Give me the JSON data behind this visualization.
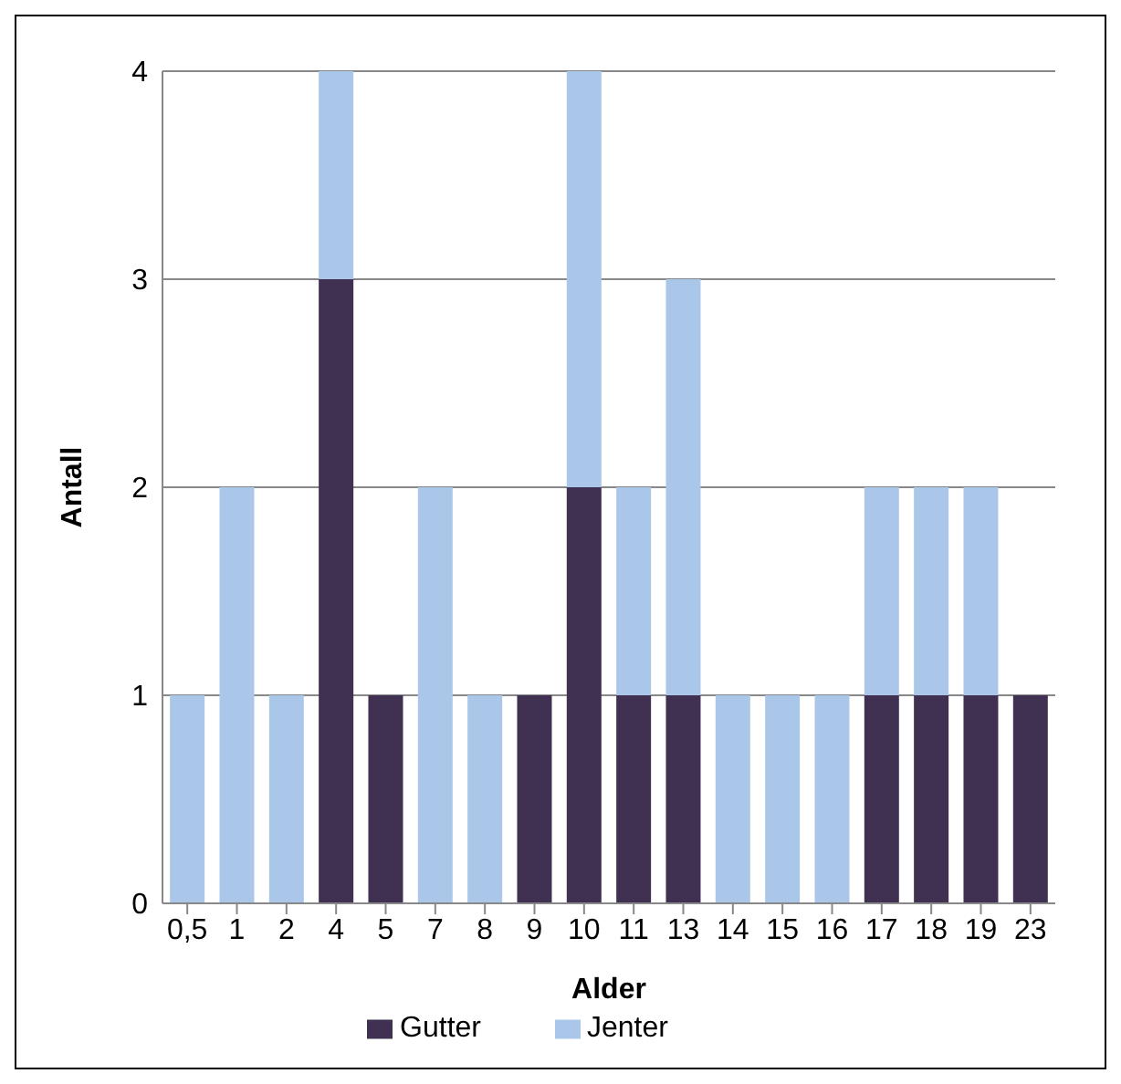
{
  "chart_data": {
    "type": "bar",
    "stacked": true,
    "xlabel": "Alder",
    "ylabel": "Antall",
    "categories": [
      "0,5",
      "1",
      "2",
      "4",
      "5",
      "7",
      "8",
      "9",
      "10",
      "11",
      "13",
      "14",
      "15",
      "16",
      "17",
      "18",
      "19",
      "23"
    ],
    "series": [
      {
        "name": "Gutter",
        "color": "#403152",
        "values": [
          0,
          0,
          0,
          3,
          1,
          0,
          0,
          1,
          2,
          1,
          1,
          0,
          0,
          0,
          1,
          1,
          1,
          1
        ]
      },
      {
        "name": "Jenter",
        "color": "#aac7e9",
        "values": [
          1,
          2,
          1,
          1,
          0,
          2,
          1,
          0,
          2,
          1,
          2,
          1,
          1,
          1,
          1,
          1,
          1,
          0
        ]
      }
    ],
    "ylim": [
      0,
      4
    ],
    "yticks": [
      0,
      1,
      2,
      3,
      4
    ],
    "grid": "y",
    "legend": "bottom"
  }
}
